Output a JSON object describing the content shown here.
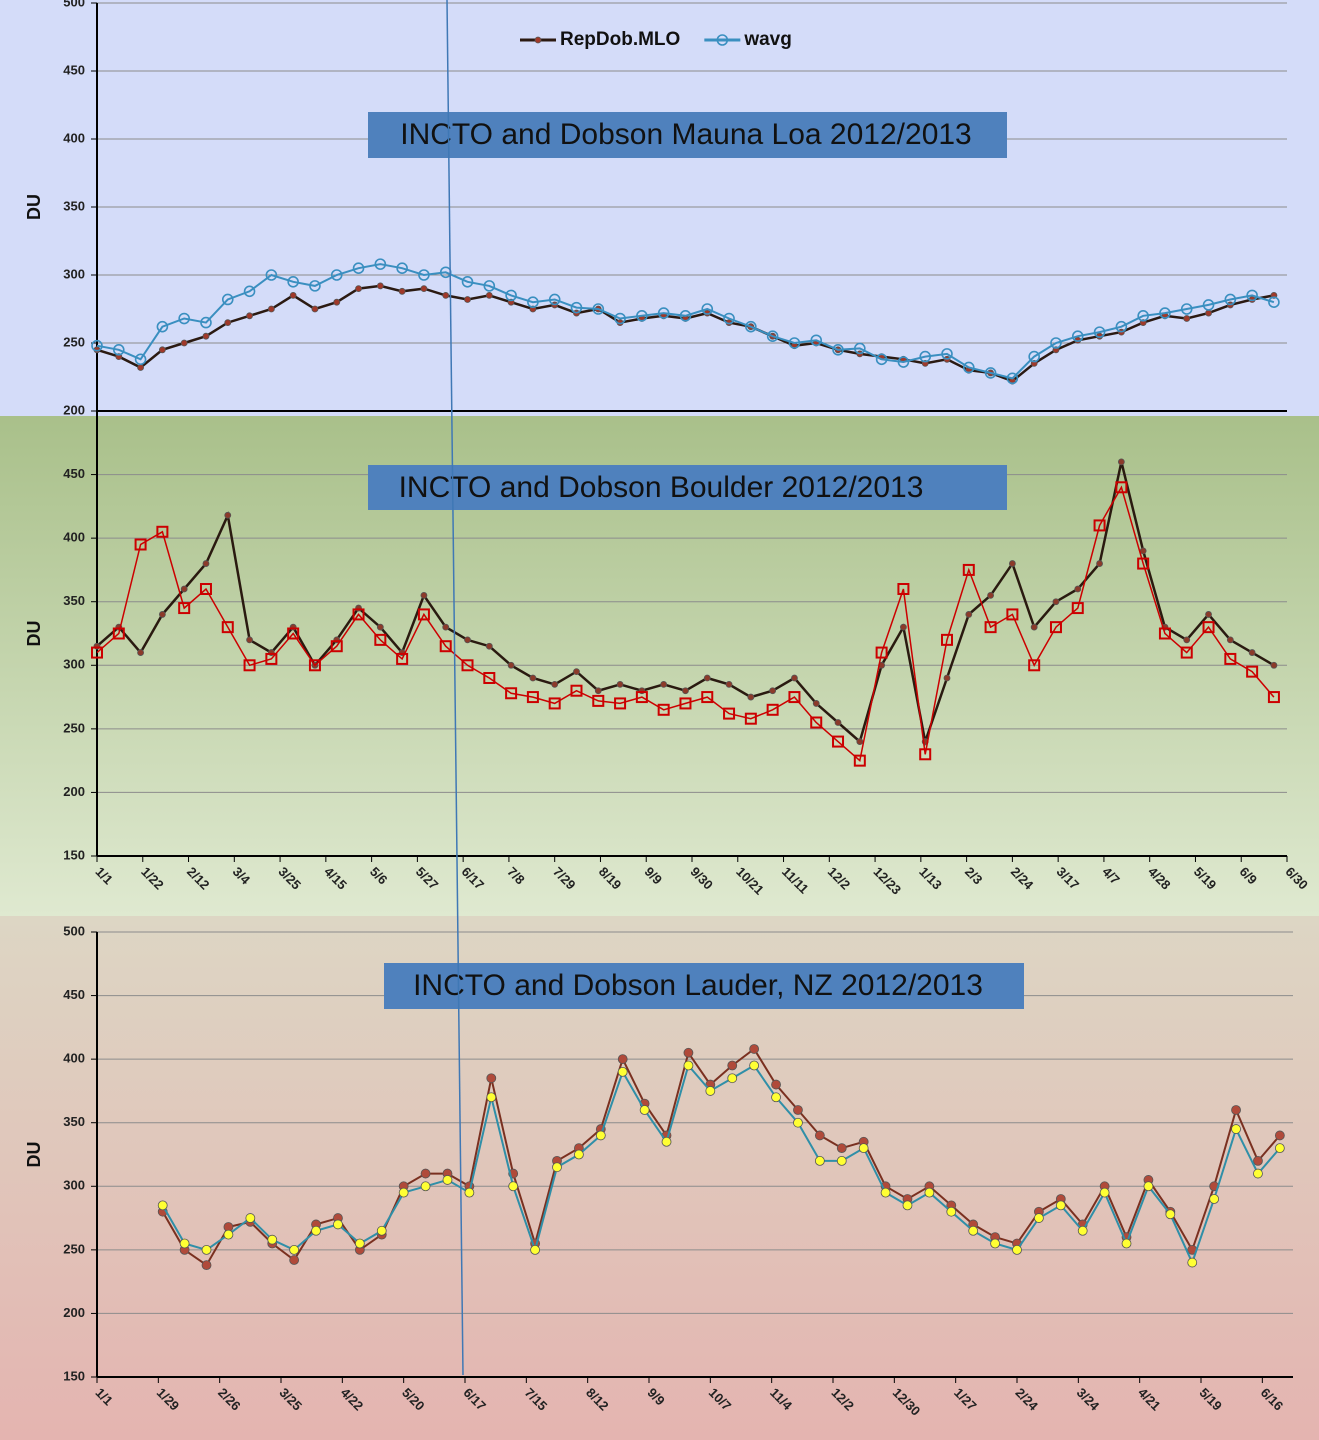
{
  "chart_data": [
    {
      "type": "line",
      "title": "INCTO and Dobson Mauna Loa 2012/2013",
      "y_label": "DU",
      "legend": "top",
      "xlim": [
        0,
        546
      ],
      "ylim": [
        200,
        500
      ],
      "yticks": [
        200,
        250,
        300,
        350,
        400,
        450,
        500
      ],
      "grid": true,
      "x": [
        0,
        10,
        20,
        30,
        40,
        50,
        60,
        70,
        80,
        90,
        100,
        110,
        120,
        130,
        140,
        150,
        160,
        170,
        180,
        190,
        200,
        210,
        220,
        230,
        240,
        250,
        260,
        270,
        280,
        290,
        300,
        310,
        320,
        330,
        340,
        350,
        360,
        370,
        380,
        390,
        400,
        410,
        420,
        430,
        440,
        450,
        460,
        470,
        480,
        490,
        500,
        510,
        520,
        530,
        540
      ],
      "series": [
        {
          "name": "RepDob.MLO",
          "color": "#2b1a12",
          "marker": "dot",
          "marker_color": "#a0392a",
          "values": [
            245,
            240,
            232,
            245,
            250,
            255,
            265,
            270,
            275,
            285,
            275,
            280,
            290,
            292,
            288,
            290,
            285,
            282,
            285,
            280,
            275,
            278,
            272,
            275,
            265,
            268,
            270,
            268,
            272,
            265,
            262,
            255,
            248,
            250,
            245,
            242,
            240,
            238,
            235,
            238,
            230,
            228,
            222,
            235,
            245,
            252,
            255,
            258,
            265,
            270,
            268,
            272,
            278,
            282,
            285
          ]
        },
        {
          "name": "wavg",
          "color": "#3a8fc0",
          "marker": "open-circle",
          "marker_color": "#3a8fc0",
          "values": [
            248,
            245,
            238,
            262,
            268,
            265,
            282,
            288,
            300,
            295,
            292,
            300,
            305,
            308,
            305,
            300,
            302,
            295,
            292,
            285,
            280,
            282,
            276,
            275,
            268,
            270,
            272,
            270,
            275,
            268,
            262,
            255,
            250,
            252,
            245,
            246,
            238,
            236,
            240,
            242,
            232,
            228,
            224,
            240,
            250,
            255,
            258,
            262,
            270,
            272,
            275,
            278,
            282,
            285,
            280
          ]
        }
      ]
    },
    {
      "type": "line",
      "title": "INCTO and Dobson Boulder 2012/2013",
      "y_label": "DU",
      "xlim": [
        0,
        546
      ],
      "ylim": [
        150,
        500
      ],
      "yticks": [
        150,
        200,
        250,
        300,
        350,
        400,
        450
      ],
      "grid": true,
      "xticks": [
        {
          "value": 0,
          "label": "1/1"
        },
        {
          "value": 21,
          "label": "1/22"
        },
        {
          "value": 42,
          "label": "2/12"
        },
        {
          "value": 63,
          "label": "3/4"
        },
        {
          "value": 84,
          "label": "3/25"
        },
        {
          "value": 105,
          "label": "4/15"
        },
        {
          "value": 126,
          "label": "5/6"
        },
        {
          "value": 147,
          "label": "5/27"
        },
        {
          "value": 168,
          "label": "6/17"
        },
        {
          "value": 189,
          "label": "7/8"
        },
        {
          "value": 210,
          "label": "7/29"
        },
        {
          "value": 231,
          "label": "8/19"
        },
        {
          "value": 252,
          "label": "9/9"
        },
        {
          "value": 273,
          "label": "9/30"
        },
        {
          "value": 294,
          "label": "10/21"
        },
        {
          "value": 315,
          "label": "11/11"
        },
        {
          "value": 336,
          "label": "12/2"
        },
        {
          "value": 357,
          "label": "12/23"
        },
        {
          "value": 378,
          "label": "1/13"
        },
        {
          "value": 399,
          "label": "2/3"
        },
        {
          "value": 420,
          "label": "2/24"
        },
        {
          "value": 441,
          "label": "3/17"
        },
        {
          "value": 462,
          "label": "4/7"
        },
        {
          "value": 483,
          "label": "4/28"
        },
        {
          "value": 504,
          "label": "5/19"
        },
        {
          "value": 525,
          "label": "6/9"
        },
        {
          "value": 546,
          "label": "6/30"
        }
      ],
      "x": [
        0,
        10,
        20,
        30,
        40,
        50,
        60,
        70,
        80,
        90,
        100,
        110,
        120,
        130,
        140,
        150,
        160,
        170,
        180,
        190,
        200,
        210,
        220,
        230,
        240,
        250,
        260,
        270,
        280,
        290,
        300,
        310,
        320,
        330,
        340,
        350,
        360,
        370,
        380,
        390,
        400,
        410,
        420,
        430,
        440,
        450,
        460,
        470,
        480,
        490,
        500,
        510,
        520,
        530,
        540
      ],
      "series": [
        {
          "color": "#2a1a10",
          "marker": "dot",
          "marker_color": "#8c3a2a",
          "values": [
            315,
            330,
            310,
            340,
            360,
            380,
            418,
            320,
            310,
            330,
            300,
            320,
            345,
            330,
            310,
            355,
            330,
            320,
            315,
            300,
            290,
            285,
            295,
            280,
            285,
            280,
            285,
            280,
            290,
            285,
            275,
            280,
            290,
            270,
            255,
            240,
            300,
            330,
            240,
            290,
            340,
            355,
            380,
            330,
            350,
            360,
            380,
            460,
            390,
            330,
            320,
            340,
            320,
            310,
            300
          ]
        },
        {
          "color": "#cc0000",
          "marker": "open-square",
          "marker_color": "#cc0000",
          "values": [
            310,
            325,
            395,
            405,
            345,
            360,
            330,
            300,
            305,
            325,
            300,
            315,
            340,
            320,
            305,
            340,
            315,
            300,
            290,
            278,
            275,
            270,
            280,
            272,
            270,
            275,
            265,
            270,
            275,
            262,
            258,
            265,
            275,
            255,
            240,
            225,
            310,
            360,
            230,
            320,
            375,
            330,
            340,
            300,
            330,
            345,
            410,
            440,
            380,
            325,
            310,
            330,
            305,
            295,
            275
          ]
        }
      ]
    },
    {
      "type": "line",
      "title": "INCTO and Dobson Lauder, NZ 2012/2013",
      "y_label": "DU",
      "xlim": [
        0,
        546
      ],
      "ylim": [
        150,
        500
      ],
      "yticks": [
        150,
        200,
        250,
        300,
        350,
        400,
        450,
        500
      ],
      "grid": true,
      "xticks": [
        {
          "value": 0,
          "label": "1/1"
        },
        {
          "value": 28,
          "label": "1/29"
        },
        {
          "value": 56,
          "label": "2/26"
        },
        {
          "value": 84,
          "label": "3/25"
        },
        {
          "value": 112,
          "label": "4/22"
        },
        {
          "value": 140,
          "label": "5/20"
        },
        {
          "value": 168,
          "label": "6/17"
        },
        {
          "value": 196,
          "label": "7/15"
        },
        {
          "value": 224,
          "label": "8/12"
        },
        {
          "value": 252,
          "label": "9/9"
        },
        {
          "value": 280,
          "label": "10/7"
        },
        {
          "value": 308,
          "label": "11/4"
        },
        {
          "value": 336,
          "label": "12/2"
        },
        {
          "value": 364,
          "label": "12/30"
        },
        {
          "value": 392,
          "label": "1/27"
        },
        {
          "value": 420,
          "label": "2/24"
        },
        {
          "value": 448,
          "label": "3/24"
        },
        {
          "value": 476,
          "label": "4/21"
        },
        {
          "value": 504,
          "label": "5/19"
        },
        {
          "value": 532,
          "label": "6/16"
        }
      ],
      "x": [
        30,
        40,
        50,
        60,
        70,
        80,
        90,
        100,
        110,
        120,
        130,
        140,
        150,
        160,
        170,
        180,
        190,
        200,
        210,
        220,
        230,
        240,
        250,
        260,
        270,
        280,
        290,
        300,
        310,
        320,
        330,
        340,
        350,
        360,
        370,
        380,
        390,
        400,
        410,
        420,
        430,
        440,
        450,
        460,
        470,
        480,
        490,
        500,
        510,
        520,
        530,
        540
      ],
      "series": [
        {
          "color": "#7a3020",
          "marker": "dot-large",
          "marker_color": "#b04a3a",
          "values": [
            280,
            250,
            238,
            268,
            272,
            255,
            242,
            270,
            275,
            250,
            262,
            300,
            310,
            310,
            300,
            385,
            310,
            255,
            320,
            330,
            345,
            400,
            365,
            340,
            405,
            380,
            395,
            408,
            380,
            360,
            340,
            330,
            335,
            300,
            290,
            300,
            285,
            270,
            260,
            255,
            280,
            290,
            270,
            300,
            260,
            305,
            280,
            250,
            300,
            360,
            320,
            340
          ]
        },
        {
          "color": "#2f8fa8",
          "marker": "yellow",
          "marker_color": "#ffff33",
          "values": [
            285,
            255,
            250,
            262,
            275,
            258,
            250,
            265,
            270,
            255,
            265,
            295,
            300,
            305,
            295,
            370,
            300,
            250,
            315,
            325,
            340,
            390,
            360,
            335,
            395,
            375,
            385,
            395,
            370,
            350,
            320,
            320,
            330,
            295,
            285,
            295,
            280,
            265,
            255,
            250,
            275,
            285,
            265,
            295,
            255,
            300,
            278,
            240,
            290,
            345,
            310,
            330
          ]
        }
      ]
    }
  ]
}
